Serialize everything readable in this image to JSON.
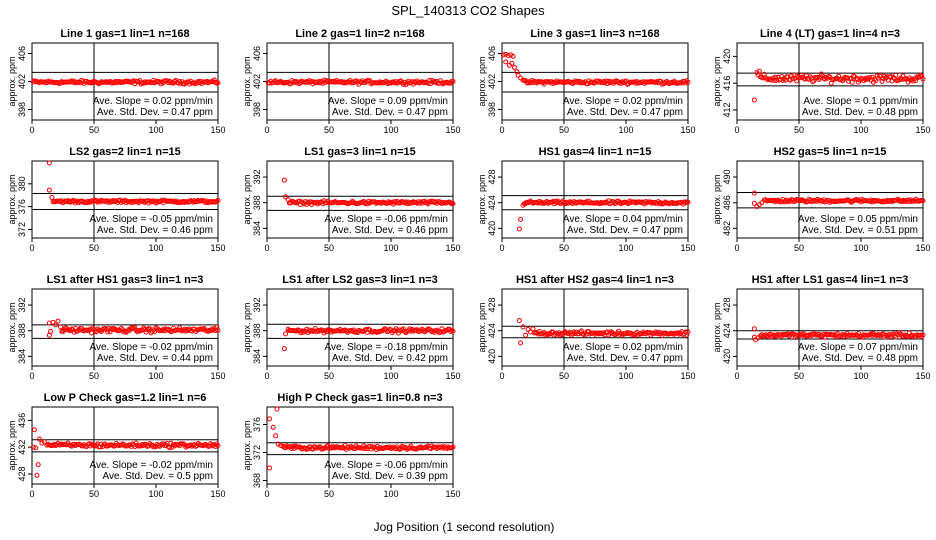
{
  "figure": {
    "title": "SPL_140313  CO2 Shapes",
    "xlabel": "Jog Position (1 second resolution)"
  },
  "chart_data": [
    {
      "type": "scatter",
      "title": "Line 1 gas=1 lin=1 n=168",
      "ylabel": "approx. ppm",
      "xlim": [
        0,
        150
      ],
      "xticks": [
        0,
        50,
        100,
        150
      ],
      "ylim": [
        396.5,
        407.5
      ],
      "yticks": [
        398,
        402,
        406
      ],
      "hlines": [
        403.3,
        400.5
      ],
      "vline": 50,
      "slope": "Ave. Slope = 0.02  ppm/min",
      "sd": "Ave. Std. Dev. = 0.47  ppm",
      "segments": [
        {
          "x0": 1,
          "x1": 150,
          "y": 401.9,
          "noise": 0.2,
          "step": 1
        }
      ]
    },
    {
      "type": "scatter",
      "title": "Line 2 gas=1 lin=2 n=168",
      "ylabel": "approx. ppm",
      "xlim": [
        0,
        150
      ],
      "xticks": [
        0,
        50,
        100,
        150
      ],
      "ylim": [
        396.5,
        407.5
      ],
      "yticks": [
        398,
        402,
        406
      ],
      "hlines": [
        403.3,
        400.5
      ],
      "vline": 50,
      "slope": "Ave. Slope = 0.09  ppm/min",
      "sd": "Ave. Std. Dev. = 0.47  ppm",
      "segments": [
        {
          "x0": 1,
          "x1": 150,
          "y": 401.9,
          "noise": 0.2,
          "step": 1
        }
      ]
    },
    {
      "type": "scatter",
      "title": "Line 3 gas=1 lin=3 n=168",
      "ylabel": "approx. ppm",
      "xlim": [
        0,
        150
      ],
      "xticks": [
        0,
        50,
        100,
        150
      ],
      "ylim": [
        396.5,
        407.5
      ],
      "yticks": [
        398,
        402,
        406
      ],
      "hlines": [
        403.3,
        400.5
      ],
      "vline": 50,
      "slope": "Ave. Slope = 0.02  ppm/min",
      "sd": "Ave. Std. Dev. = 0.47  ppm",
      "points": [
        [
          1,
          405.8
        ],
        [
          3,
          405.9
        ],
        [
          5,
          405.7
        ],
        [
          7,
          405.8
        ],
        [
          9,
          405.6
        ],
        [
          3,
          404.8
        ],
        [
          6,
          404.3
        ],
        [
          8,
          404.6
        ],
        [
          10,
          404.0
        ],
        [
          12,
          403.4
        ],
        [
          13,
          402.9
        ],
        [
          15,
          402.5
        ],
        [
          17,
          402.2
        ]
      ],
      "segments": [
        {
          "x0": 18,
          "x1": 150,
          "y": 401.9,
          "noise": 0.2,
          "step": 1
        }
      ]
    },
    {
      "type": "scatter",
      "title": "Line 4 (LT) gas=1 lin=4 n=3",
      "ylabel": "approx. ppm",
      "xlim": [
        0,
        150
      ],
      "xticks": [
        0,
        50,
        100,
        150
      ],
      "ylim": [
        410.5,
        422
      ],
      "yticks": [
        412,
        416,
        420
      ],
      "hlines": [
        417.5,
        415.6
      ],
      "vline": 50,
      "slope": "Ave. Slope = 0.1  ppm/min",
      "sd": "Ave. Std. Dev. = 0.48  ppm",
      "points": [
        [
          14,
          413.5
        ],
        [
          16,
          417.6
        ],
        [
          18,
          417.8
        ],
        [
          17,
          417.2
        ]
      ],
      "segments": [
        {
          "x0": 19,
          "x1": 150,
          "y": 416.7,
          "noise": 0.45,
          "step": 1
        }
      ]
    },
    {
      "type": "scatter",
      "title": "LS2 gas=2 lin=1 n=15",
      "ylabel": "approx. ppm",
      "xlim": [
        0,
        150
      ],
      "xticks": [
        0,
        50,
        100,
        150
      ],
      "ylim": [
        370.5,
        384
      ],
      "yticks": [
        372,
        376,
        380
      ],
      "hlines": [
        378.3,
        375.5
      ],
      "vline": 50,
      "slope": "Ave. Slope = -0.05  ppm/min",
      "sd": "Ave. Std. Dev. = 0.46  ppm",
      "points": [
        [
          14,
          383.8
        ],
        [
          14,
          378.9
        ],
        [
          16,
          377.6
        ]
      ],
      "segments": [
        {
          "x0": 17,
          "x1": 150,
          "y": 376.9,
          "noise": 0.2,
          "step": 1
        }
      ]
    },
    {
      "type": "scatter",
      "title": "LS1 gas=3 lin=1 n=15",
      "ylabel": "approx. ppm",
      "xlim": [
        0,
        150
      ],
      "xticks": [
        0,
        50,
        100,
        150
      ],
      "ylim": [
        382.5,
        394.5
      ],
      "yticks": [
        384,
        388,
        392
      ],
      "hlines": [
        389,
        386.8
      ],
      "vline": 50,
      "slope": "Ave. Slope = -0.06  ppm/min",
      "sd": "Ave. Std. Dev. = 0.46  ppm",
      "points": [
        [
          14,
          391.5
        ],
        [
          15,
          388.9
        ],
        [
          17,
          388.5
        ]
      ],
      "segments": [
        {
          "x0": 18,
          "x1": 150,
          "y": 388.0,
          "noise": 0.2,
          "step": 1
        }
      ]
    },
    {
      "type": "scatter",
      "title": "HS1 gas=4 lin=1 n=15",
      "ylabel": "approx. ppm",
      "xlim": [
        0,
        150
      ],
      "xticks": [
        0,
        50,
        100,
        150
      ],
      "ylim": [
        418.5,
        430.5
      ],
      "yticks": [
        420,
        424,
        428
      ],
      "hlines": [
        425.1,
        422.9
      ],
      "vline": 50,
      "slope": "Ave. Slope = 0.04  ppm/min",
      "sd": "Ave. Std. Dev. = 0.47  ppm",
      "points": [
        [
          14,
          419.9
        ],
        [
          15,
          421.4
        ],
        [
          17,
          423.6
        ]
      ],
      "segments": [
        {
          "x0": 18,
          "x1": 150,
          "y": 424.0,
          "noise": 0.2,
          "step": 1
        }
      ]
    },
    {
      "type": "scatter",
      "title": "HS2 gas=5 lin=1 n=15",
      "ylabel": "approx. ppm",
      "xlim": [
        0,
        150
      ],
      "xticks": [
        0,
        50,
        100,
        150
      ],
      "ylim": [
        480.5,
        492.5
      ],
      "yticks": [
        482,
        486,
        490
      ],
      "hlines": [
        487.6,
        485.2
      ],
      "vline": 50,
      "slope": "Ave. Slope = 0.05  ppm/min",
      "sd": "Ave. Std. Dev. = 0.51  ppm",
      "points": [
        [
          14,
          487.5
        ],
        [
          14,
          485.9
        ],
        [
          16,
          485.4
        ],
        [
          18,
          485.7
        ],
        [
          20,
          486.0
        ]
      ],
      "segments": [
        {
          "x0": 22,
          "x1": 150,
          "y": 486.3,
          "noise": 0.2,
          "step": 1
        }
      ]
    },
    {
      "type": "scatter",
      "title": "LS1 after HS1 gas=3 lin=1 n=3",
      "ylabel": "approx. ppm",
      "xlim": [
        0,
        150
      ],
      "xticks": [
        0,
        50,
        100,
        150
      ],
      "ylim": [
        382.5,
        394.5
      ],
      "yticks": [
        384,
        388,
        392
      ],
      "hlines": [
        388.9,
        386.8
      ],
      "vline": 50,
      "slope": "Ave. Slope = -0.02  ppm/min",
      "sd": "Ave. Std. Dev. = 0.44  ppm",
      "points": [
        [
          14,
          389.2
        ],
        [
          14,
          387.3
        ],
        [
          15,
          387.9
        ],
        [
          17,
          389.3
        ],
        [
          19,
          388.9
        ],
        [
          21,
          389.5
        ],
        [
          23,
          388.6
        ]
      ],
      "segments": [
        {
          "x0": 24,
          "x1": 150,
          "y": 388.1,
          "noise": 0.3,
          "step": 1
        }
      ]
    },
    {
      "type": "scatter",
      "title": "LS1 after LS2 gas=3 lin=1 n=3",
      "ylabel": "approx. ppm",
      "xlim": [
        0,
        150
      ],
      "xticks": [
        0,
        50,
        100,
        150
      ],
      "ylim": [
        382.5,
        394.5
      ],
      "yticks": [
        384,
        388,
        392
      ],
      "hlines": [
        389,
        386.8
      ],
      "vline": 50,
      "slope": "Ave. Slope = -0.18  ppm/min",
      "sd": "Ave. Std. Dev. = 0.42  ppm",
      "points": [
        [
          14,
          385.2
        ],
        [
          15,
          387.5
        ],
        [
          17,
          388.2
        ]
      ],
      "segments": [
        {
          "x0": 18,
          "x1": 150,
          "y": 388.0,
          "noise": 0.25,
          "step": 1
        }
      ]
    },
    {
      "type": "scatter",
      "title": "HS1 after HS2 gas=4 lin=1 n=3",
      "ylabel": "approx. ppm",
      "xlim": [
        0,
        150
      ],
      "xticks": [
        0,
        50,
        100,
        150
      ],
      "ylim": [
        418.5,
        430.5
      ],
      "yticks": [
        420,
        424,
        428
      ],
      "hlines": [
        424.7,
        422.9
      ],
      "vline": 50,
      "slope": "Ave. Slope = 0.02  ppm/min",
      "sd": "Ave. Std. Dev. = 0.47  ppm",
      "points": [
        [
          14,
          425.6
        ],
        [
          15,
          422.1
        ],
        [
          17,
          424.6
        ],
        [
          19,
          423.3
        ],
        [
          21,
          424.2
        ],
        [
          23,
          423.8
        ],
        [
          25,
          424.3
        ]
      ],
      "segments": [
        {
          "x0": 26,
          "x1": 150,
          "y": 423.6,
          "noise": 0.25,
          "step": 1
        }
      ]
    },
    {
      "type": "scatter",
      "title": "HS1 after LS1 gas=4 lin=1 n=3",
      "ylabel": "approx. ppm",
      "xlim": [
        0,
        150
      ],
      "xticks": [
        0,
        50,
        100,
        150
      ],
      "ylim": [
        418.5,
        430.5
      ],
      "yticks": [
        420,
        424,
        428
      ],
      "hlines": [
        424,
        422.7
      ],
      "vline": 50,
      "slope": "Ave. Slope = 0.07  ppm/min",
      "sd": "Ave. Std. Dev. = 0.48  ppm",
      "points": [
        [
          14,
          424.3
        ],
        [
          14,
          423.0
        ],
        [
          15,
          422.6
        ],
        [
          17,
          422.9
        ],
        [
          19,
          423.2
        ]
      ],
      "segments": [
        {
          "x0": 20,
          "x1": 150,
          "y": 423.3,
          "noise": 0.25,
          "step": 1
        }
      ]
    },
    {
      "type": "scatter",
      "title": "Low P Check gas=1.2 lin=1 n=6",
      "ylabel": "approx. ppm",
      "xlim": [
        0,
        150
      ],
      "xticks": [
        0,
        50,
        100,
        150
      ],
      "ylim": [
        426.5,
        438
      ],
      "yticks": [
        428,
        432,
        436
      ],
      "hlines": [
        433.1,
        431.3
      ],
      "vline": 50,
      "slope": "Ave. Slope = -0.02  ppm/min",
      "sd": "Ave. Std. Dev. = 0.5  ppm",
      "points": [
        [
          2,
          434.6
        ],
        [
          1,
          432.0
        ],
        [
          3,
          431.9
        ],
        [
          5,
          429.4
        ],
        [
          4,
          427.8
        ],
        [
          6,
          433.2
        ],
        [
          8,
          432.6
        ],
        [
          10,
          432.8
        ],
        [
          12,
          432.3
        ]
      ],
      "segments": [
        {
          "x0": 13,
          "x1": 150,
          "y": 432.3,
          "noise": 0.25,
          "step": 1
        }
      ]
    },
    {
      "type": "scatter",
      "title": "High P Check gas=1 lin=0.8 n=3",
      "ylabel": "approx. ppm",
      "xlim": [
        0,
        150
      ],
      "xticks": [
        0,
        50,
        100,
        150
      ],
      "ylim": [
        367.5,
        378.5
      ],
      "yticks": [
        368,
        372,
        376
      ],
      "hlines": [
        373.4,
        371.7
      ],
      "vline": 50,
      "slope": "Ave. Slope = -0.06  ppm/min",
      "sd": "Ave. Std. Dev. = 0.39  ppm",
      "points": [
        [
          8,
          378.3
        ],
        [
          2,
          376.8
        ],
        [
          5,
          375.6
        ],
        [
          7,
          374.4
        ],
        [
          9,
          373.2
        ],
        [
          2,
          369.8
        ],
        [
          11,
          373.0
        ],
        [
          13,
          372.9
        ]
      ],
      "segments": [
        {
          "x0": 14,
          "x1": 150,
          "y": 372.7,
          "noise": 0.22,
          "step": 1
        }
      ]
    }
  ]
}
